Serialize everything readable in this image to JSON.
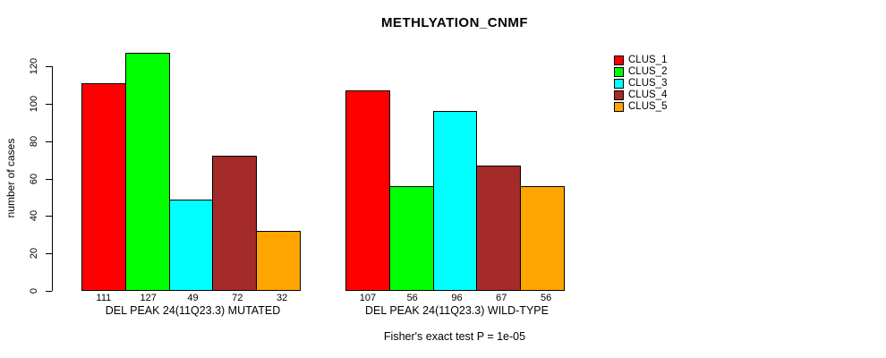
{
  "chart_data": {
    "type": "bar",
    "title": "METHLYATION_CNMF",
    "ylabel": "number of cases",
    "footnote": "Fisher's exact test P = 1e-05",
    "ylim": [
      0,
      120
    ],
    "y_ticks": [
      0,
      20,
      40,
      60,
      80,
      100,
      120
    ],
    "grid": false,
    "legend_position": "top-right",
    "series_colors": [
      "#FF0000",
      "#00FF00",
      "#00FFFF",
      "#A52A2A",
      "#FFA500"
    ],
    "groups": [
      {
        "label": "DEL PEAK 24(11Q23.3) MUTATED",
        "values": [
          111,
          127,
          49,
          72,
          32
        ]
      },
      {
        "label": "DEL PEAK 24(11Q23.3) WILD-TYPE",
        "values": [
          107,
          56,
          96,
          67,
          56
        ]
      }
    ],
    "legend": [
      {
        "label": "CLUS_1",
        "color": "#FF0000"
      },
      {
        "label": "CLUS_2",
        "color": "#00FF00"
      },
      {
        "label": "CLUS_3",
        "color": "#00FFFF"
      },
      {
        "label": "CLUS_4",
        "color": "#A52A2A"
      },
      {
        "label": "CLUS_5",
        "color": "#FFA500"
      }
    ]
  }
}
